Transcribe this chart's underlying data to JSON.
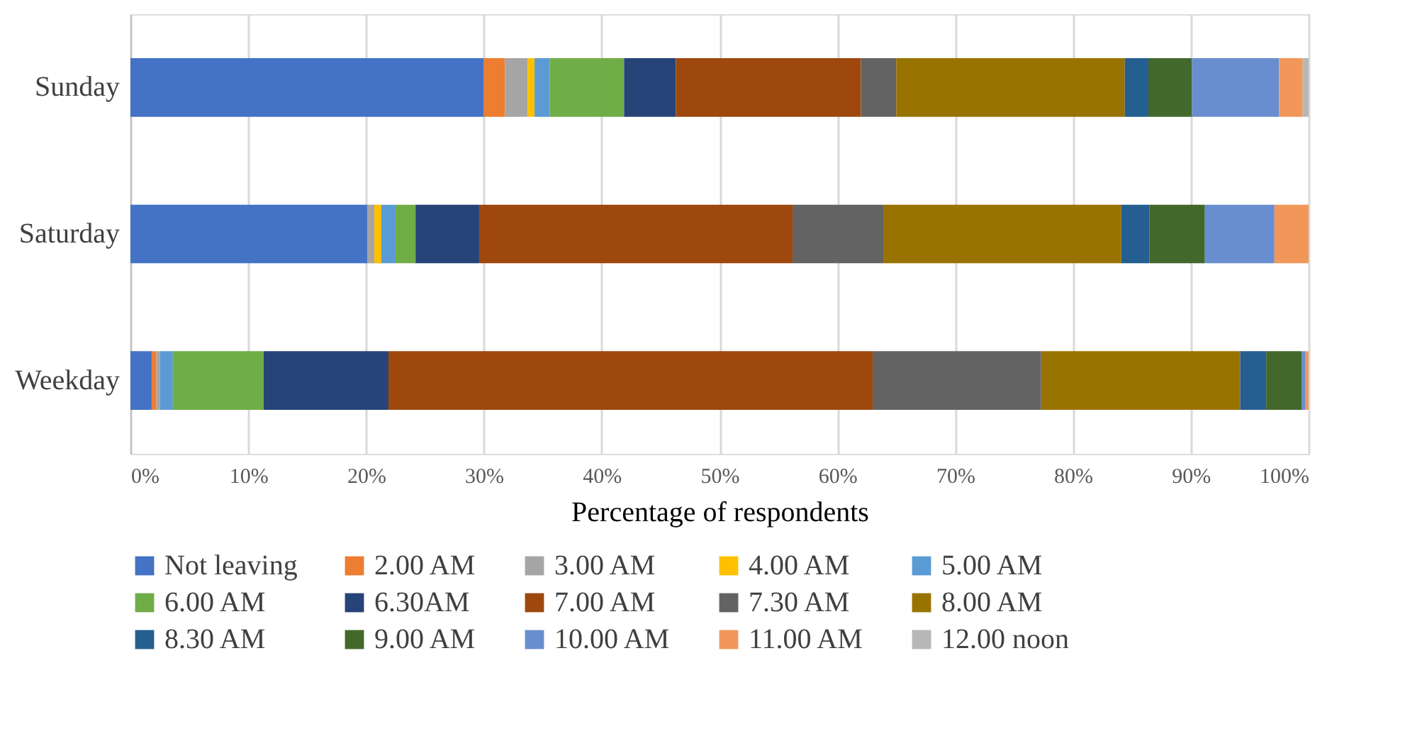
{
  "chart_data": {
    "type": "bar",
    "orientation": "horizontal",
    "stacked": true,
    "xlabel": "Percentage of respondents",
    "categories": [
      "Sunday",
      "Saturday",
      "Weekday"
    ],
    "series": [
      {
        "name": "Not leaving",
        "color": "#4472c4",
        "values": [
          30.0,
          20.1,
          1.8
        ]
      },
      {
        "name": "2.00 AM",
        "color": "#ed7d31",
        "values": [
          1.8,
          0,
          0.4
        ]
      },
      {
        "name": "3.00 AM",
        "color": "#a5a5a5",
        "values": [
          1.9,
          0.6,
          0.3
        ]
      },
      {
        "name": "4.00 AM",
        "color": "#ffc000",
        "values": [
          0.6,
          0.6,
          0
        ]
      },
      {
        "name": "5.00 AM",
        "color": "#5b9bd5",
        "values": [
          1.3,
          1.2,
          1.1
        ]
      },
      {
        "name": "6.00 AM",
        "color": "#70ad47",
        "values": [
          6.3,
          1.7,
          7.7
        ]
      },
      {
        "name": "6.30AM",
        "color": "#264478",
        "values": [
          4.4,
          5.4,
          10.6
        ]
      },
      {
        "name": "7.00 AM",
        "color": "#9e480e",
        "values": [
          15.7,
          26.6,
          41.1
        ]
      },
      {
        "name": "7.30 AM",
        "color": "#636363",
        "values": [
          3.0,
          7.7,
          14.3
        ]
      },
      {
        "name": "8.00 AM",
        "color": "#997300",
        "values": [
          19.4,
          20.2,
          16.9
        ]
      },
      {
        "name": "8.30 AM",
        "color": "#255e91",
        "values": [
          2.0,
          2.4,
          2.2
        ]
      },
      {
        "name": "9.00 AM",
        "color": "#43682b",
        "values": [
          3.7,
          4.7,
          3.0
        ]
      },
      {
        "name": "10.00 AM",
        "color": "#698ed0",
        "values": [
          7.4,
          5.9,
          0.3
        ]
      },
      {
        "name": "11.00 AM",
        "color": "#f1975a",
        "values": [
          2.0,
          2.9,
          0.3
        ]
      },
      {
        "name": "12.00 noon",
        "color": "#b7b7b7",
        "values": [
          0.5,
          0,
          0
        ]
      }
    ],
    "xlim": [
      0,
      100
    ],
    "xticks": [
      {
        "value": 0,
        "label": "0%"
      },
      {
        "value": 10,
        "label": "10%"
      },
      {
        "value": 20,
        "label": "20%"
      },
      {
        "value": 30,
        "label": "30%"
      },
      {
        "value": 40,
        "label": "40%"
      },
      {
        "value": 50,
        "label": "50%"
      },
      {
        "value": 60,
        "label": "60%"
      },
      {
        "value": 70,
        "label": "70%"
      },
      {
        "value": 80,
        "label": "80%"
      },
      {
        "value": 90,
        "label": "90%"
      },
      {
        "value": 100,
        "label": "100%"
      }
    ],
    "grid": "x",
    "legend": "bottom"
  }
}
